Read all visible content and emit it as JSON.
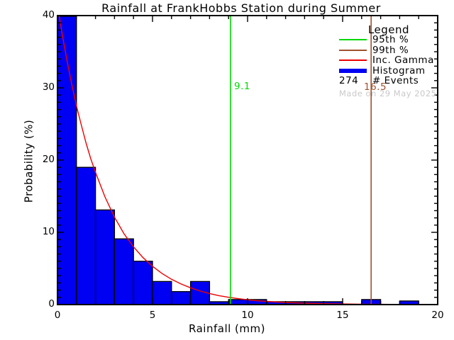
{
  "chart_data": {
    "type": "bar",
    "subtype": "histogram-with-fit",
    "title": "Rainfall at FrankHobbs Station during Summer",
    "xlabel": "Rainfall (mm)",
    "ylabel": "Probability (%)",
    "xlim": [
      0,
      20
    ],
    "ylim": [
      0,
      40
    ],
    "x_major_ticks": [
      0,
      5,
      10,
      15,
      20
    ],
    "y_major_ticks": [
      0,
      10,
      20,
      30,
      40
    ],
    "x_minor_step": 1,
    "y_minor_step": 1,
    "grid": false,
    "bin_start": 0,
    "bin_width": 1,
    "bin_values_percent": [
      40.1,
      19.0,
      13.1,
      9.1,
      6.0,
      3.2,
      1.8,
      3.2,
      0.4,
      0.7,
      0.7,
      0.4,
      0.4,
      0.4,
      0.4,
      0,
      0.7,
      0,
      0.5,
      0
    ],
    "histogram_color": "#0000f2",
    "bar_outline_color": "#000000",
    "fit_curve": {
      "name": "Inc. Gamma",
      "color": "#ee0000",
      "points": [
        [
          0.09,
          40
        ],
        [
          0.25,
          37.4
        ],
        [
          0.5,
          33.8
        ],
        [
          0.75,
          30.5
        ],
        [
          1,
          27.5
        ],
        [
          1.25,
          24.9
        ],
        [
          1.5,
          22.4
        ],
        [
          1.75,
          20.2
        ],
        [
          2,
          18.3
        ],
        [
          2.5,
          14.9
        ],
        [
          3,
          12.1
        ],
        [
          3.5,
          9.8
        ],
        [
          4,
          8.0
        ],
        [
          4.5,
          6.5
        ],
        [
          5,
          5.3
        ],
        [
          5.5,
          4.3
        ],
        [
          6,
          3.5
        ],
        [
          6.5,
          2.85
        ],
        [
          7,
          2.32
        ],
        [
          7.5,
          1.88
        ],
        [
          8,
          1.53
        ],
        [
          8.5,
          1.24
        ],
        [
          9,
          1.01
        ],
        [
          9.5,
          0.82
        ],
        [
          10,
          0.67
        ],
        [
          10.5,
          0.54
        ],
        [
          11,
          0.44
        ],
        [
          11.5,
          0.36
        ],
        [
          12,
          0.29
        ],
        [
          13,
          0.19
        ],
        [
          14,
          0.13
        ],
        [
          15,
          0.085
        ],
        [
          16,
          0.056
        ],
        [
          17,
          0.037
        ],
        [
          18,
          0.024
        ],
        [
          19,
          0.016
        ],
        [
          20,
          0.011
        ]
      ]
    },
    "percentiles": {
      "p95": {
        "label": "9.1",
        "value": 9.1,
        "color": "#00d800"
      },
      "p99": {
        "label": "16.5",
        "value": 16.5,
        "color": "#a0522d"
      }
    },
    "n_events": "274",
    "legend": {
      "title": "Legend",
      "items": [
        {
          "label": "95th %",
          "color": "#00d800",
          "swatch": "line"
        },
        {
          "label": "99th %",
          "color": "#a0522d",
          "swatch": "line"
        },
        {
          "label": "Inc. Gamma",
          "color": "#ee0000",
          "swatch": "line"
        },
        {
          "label": "Histogram",
          "color": "#0000f2",
          "swatch": "thick-line"
        },
        {
          "label": "# Events",
          "value": "274",
          "swatch": "count"
        }
      ],
      "watermark": "Made on 29 May 2025",
      "watermark_color": "#c9c9c9"
    },
    "axis_color": "#000000",
    "background_color": "#ffffff"
  }
}
